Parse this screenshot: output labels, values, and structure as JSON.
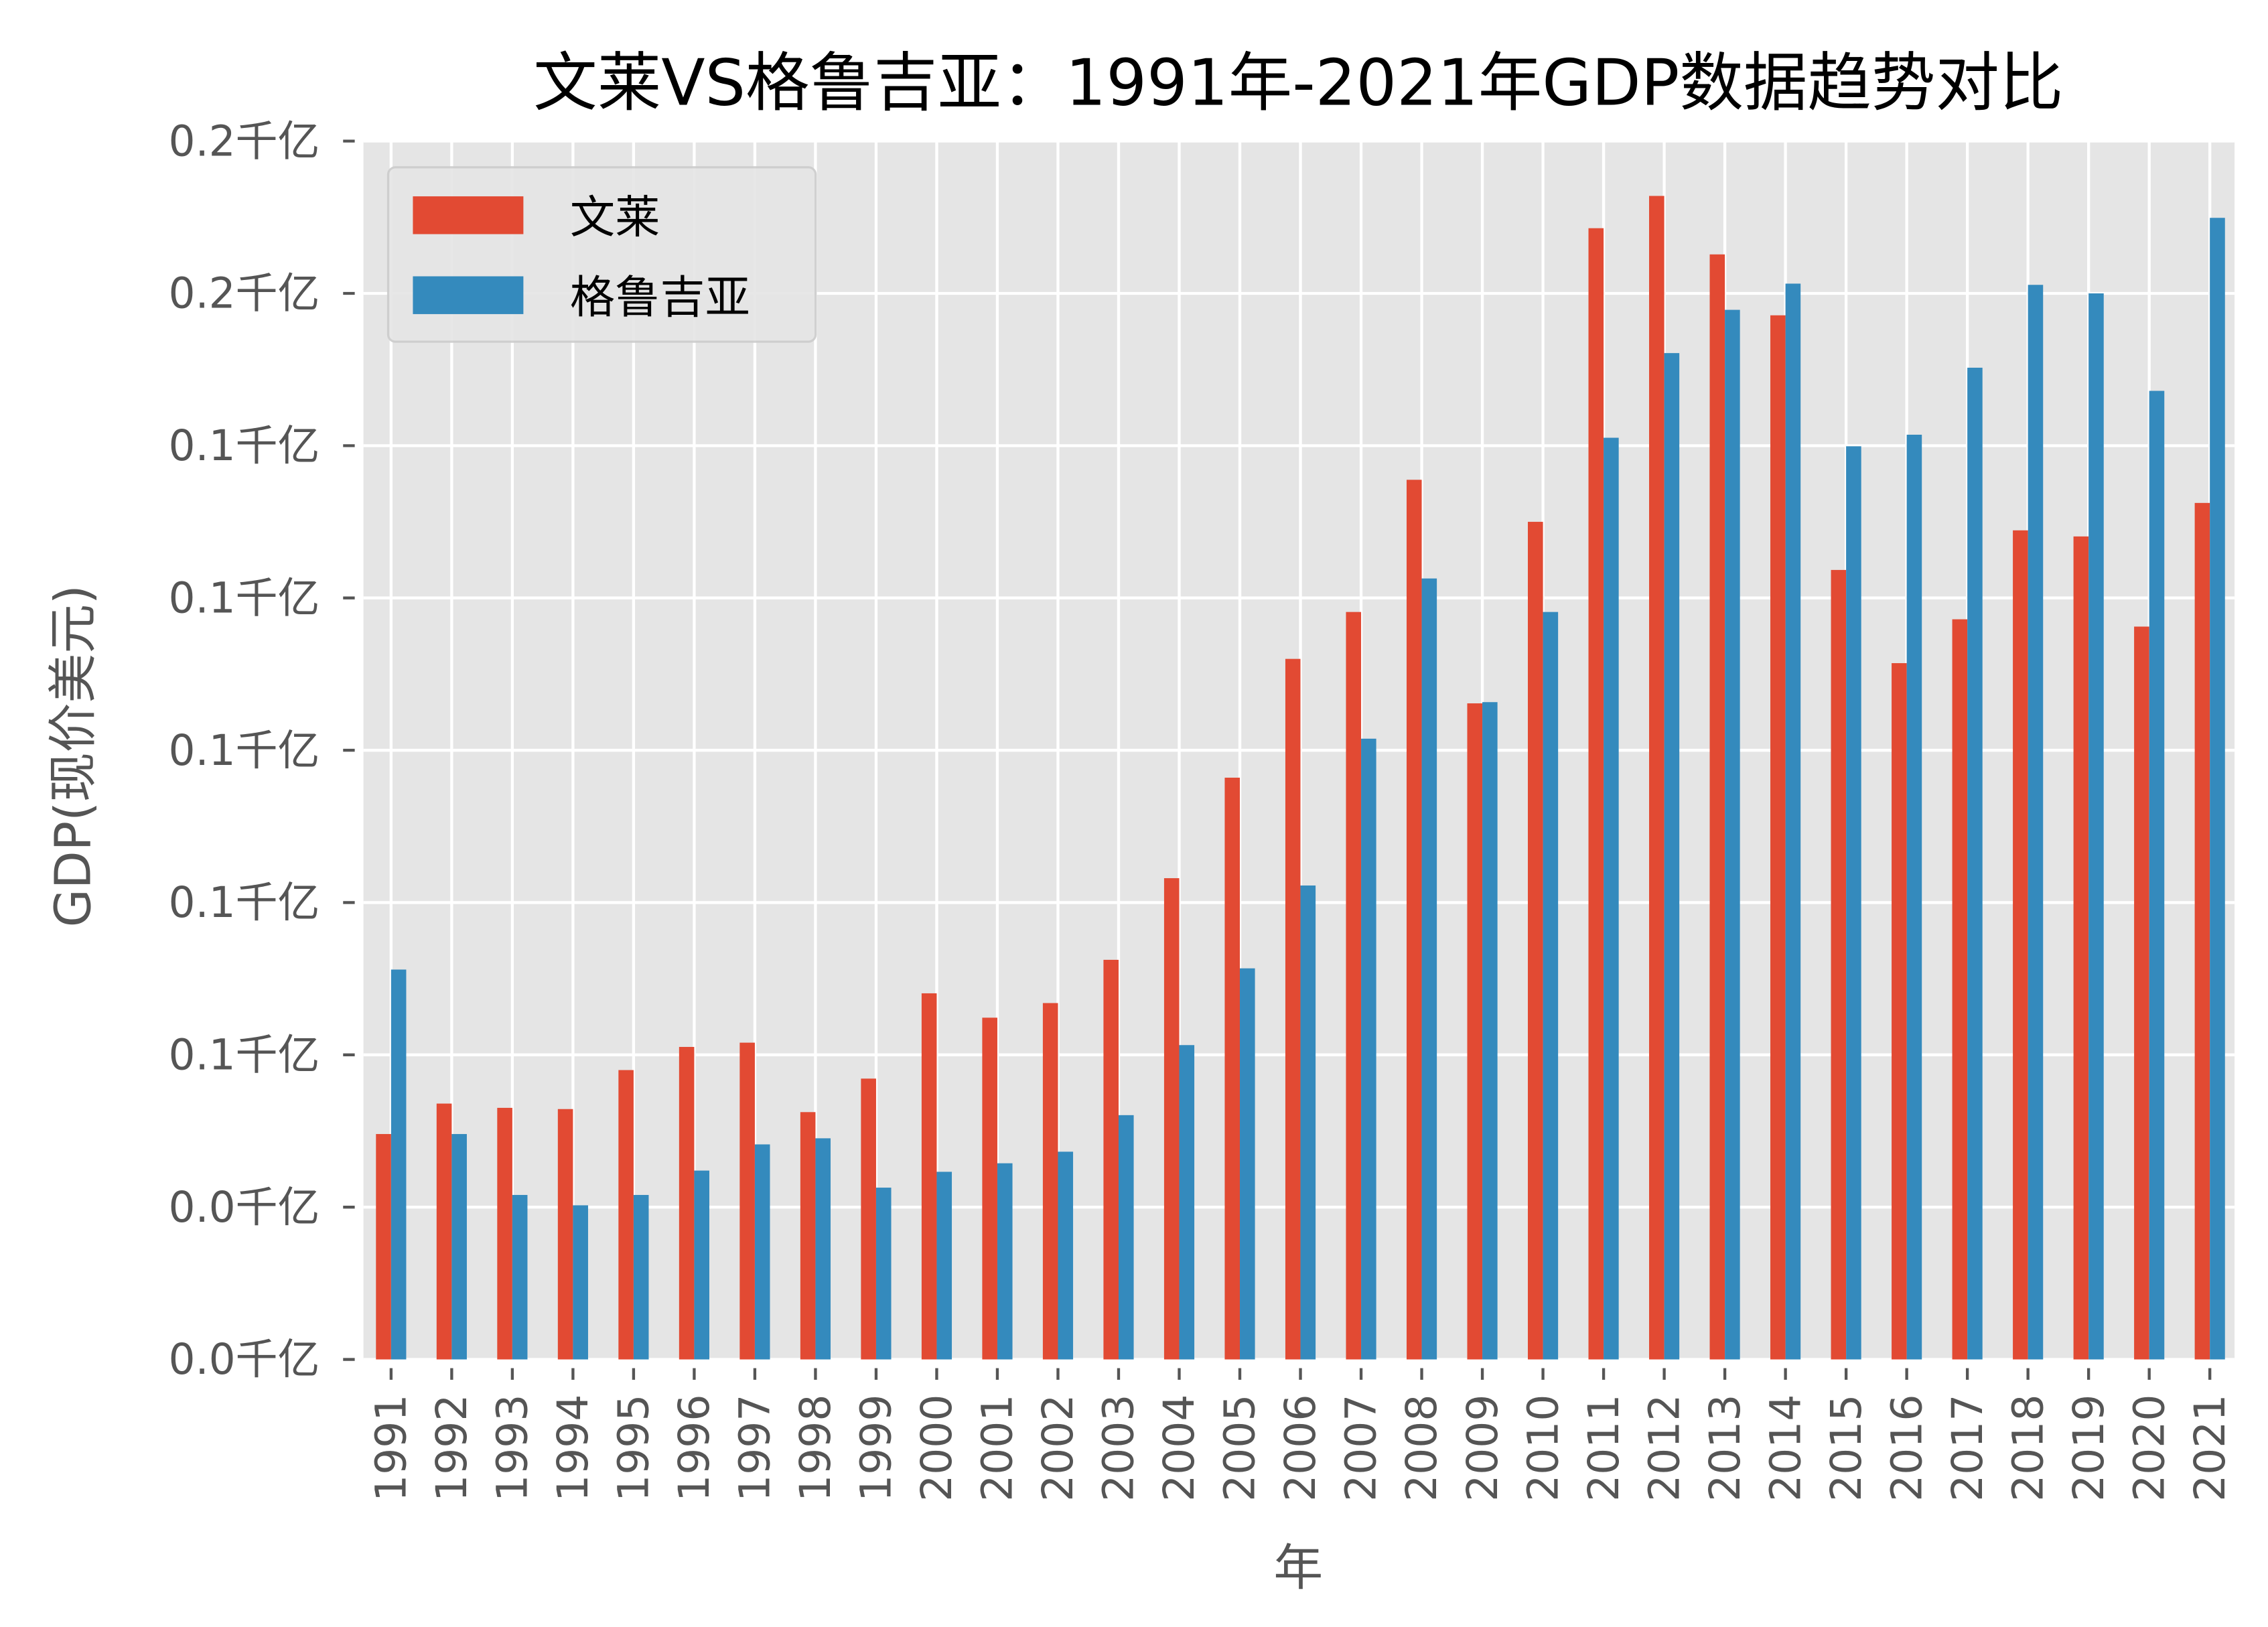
{
  "chart_data": {
    "type": "bar",
    "title": "文莱VS格鲁吉亚：1991年-2021年GDP数据趋势对比",
    "xlabel": "年",
    "ylabel": "GDP(现价美元)",
    "ylim": [
      0,
      0.2
    ],
    "yticks": [
      0,
      0.025,
      0.05,
      0.075,
      0.1,
      0.125,
      0.15,
      0.175,
      0.2
    ],
    "ytick_labels": [
      "0.0千亿",
      "0.0千亿",
      "0.1千亿",
      "0.1千亿",
      "0.1千亿",
      "0.1千亿",
      "0.1千亿",
      "0.2千亿",
      "0.2千亿"
    ],
    "grid": true,
    "legend_position": "top-left",
    "categories": [
      "1991",
      "1992",
      "1993",
      "1994",
      "1995",
      "1996",
      "1997",
      "1998",
      "1999",
      "2000",
      "2001",
      "2002",
      "2003",
      "2004",
      "2005",
      "2006",
      "2007",
      "2008",
      "2009",
      "2010",
      "2011",
      "2012",
      "2013",
      "2014",
      "2015",
      "2016",
      "2017",
      "2018",
      "2019",
      "2020",
      "2021"
    ],
    "series": [
      {
        "name": "文莱",
        "color": "#E24A33",
        "values": [
          0.037,
          0.042,
          0.0413,
          0.0411,
          0.0475,
          0.0513,
          0.052,
          0.0406,
          0.0461,
          0.0601,
          0.0561,
          0.0585,
          0.0656,
          0.079,
          0.0955,
          0.115,
          0.1227,
          0.1444,
          0.1077,
          0.1375,
          0.1857,
          0.191,
          0.1814,
          0.1714,
          0.1296,
          0.1143,
          0.1215,
          0.1361,
          0.1351,
          0.1203,
          0.1406
        ]
      },
      {
        "name": "格鲁吉亚",
        "color": "#348ABD",
        "values": [
          0.064,
          0.037,
          0.027,
          0.0253,
          0.027,
          0.031,
          0.0353,
          0.0363,
          0.0282,
          0.0308,
          0.0322,
          0.0341,
          0.0401,
          0.0516,
          0.0642,
          0.0778,
          0.1019,
          0.1282,
          0.1079,
          0.1227,
          0.1513,
          0.1652,
          0.1723,
          0.1766,
          0.1499,
          0.1518,
          0.1628,
          0.1764,
          0.175,
          0.159,
          0.1874
        ]
      }
    ]
  }
}
